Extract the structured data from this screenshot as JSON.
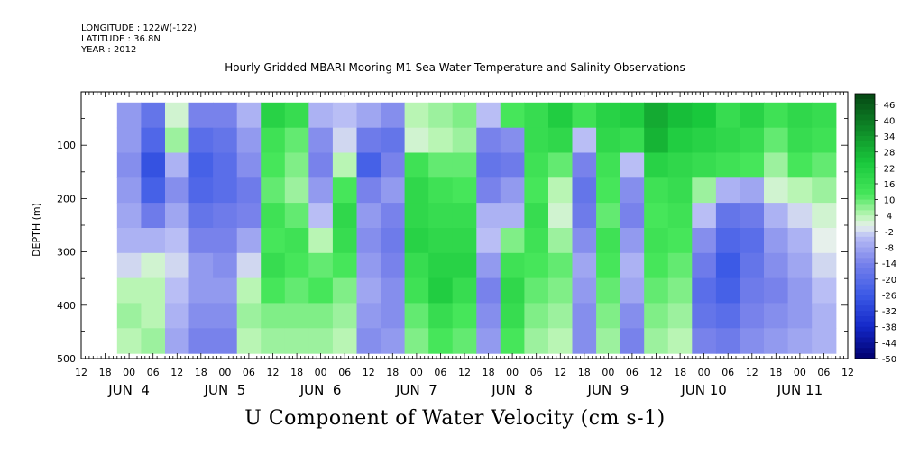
{
  "header": {
    "longitude": "LONGITUDE : 122W(-122)",
    "latitude": "LATITUDE : 36.8N",
    "year": "YEAR : 2012"
  },
  "chart_data": {
    "type": "heatmap",
    "title": "Hourly Gridded MBARI Mooring M1 Sea Water Temperature and Salinity Observations",
    "xlabel": "",
    "ylabel": "DEPTH (m)",
    "footer_label": "U Component of Water Velocity (cm s-1)",
    "x_hour_labels": [
      "12",
      "18",
      "00",
      "06",
      "12",
      "18",
      "00",
      "06",
      "12",
      "18",
      "00",
      "06",
      "12",
      "18",
      "00",
      "06",
      "12",
      "18",
      "00",
      "06",
      "12",
      "18",
      "00",
      "06",
      "12",
      "18",
      "00",
      "06",
      "12",
      "18",
      "00",
      "06",
      "12"
    ],
    "x_day_labels": [
      "JUN  4",
      "JUN  5",
      "JUN  6",
      "JUN  7",
      "JUN  8",
      "JUN  9",
      "JUN 10",
      "JUN 11"
    ],
    "xlim_hours": [
      0,
      192
    ],
    "y_ticks": [
      "100",
      "200",
      "300",
      "400",
      "500"
    ],
    "ylim": [
      500,
      0
    ],
    "data_depth_range": [
      20,
      490
    ],
    "data_start_hour": 9,
    "colorbar": {
      "labels": [
        "46",
        "40",
        "34",
        "28",
        "22",
        "16",
        "10",
        "4",
        "-2",
        "-8",
        "-14",
        "-20",
        "-26",
        "-32",
        "-38",
        "-44",
        "-50"
      ],
      "range": [
        -50,
        50
      ]
    },
    "columns_u": [
      {
        "hour": 9,
        "u": [
          -10,
          -10,
          -12,
          -10,
          -8,
          -6,
          -2,
          4,
          6,
          4
        ]
      },
      {
        "hour": 15,
        "u": [
          -18,
          -22,
          -28,
          -24,
          -16,
          -6,
          2,
          4,
          4,
          6
        ]
      },
      {
        "hour": 21,
        "u": [
          2,
          6,
          -6,
          -12,
          -8,
          -4,
          -2,
          -4,
          -6,
          -8
        ]
      },
      {
        "hour": 27,
        "u": [
          -14,
          -20,
          -24,
          -22,
          -18,
          -14,
          -10,
          -10,
          -12,
          -14
        ]
      },
      {
        "hour": 33,
        "u": [
          -14,
          -18,
          -20,
          -20,
          -16,
          -14,
          -12,
          -10,
          -12,
          -14
        ]
      },
      {
        "hour": 39,
        "u": [
          -6,
          -10,
          -12,
          -16,
          -14,
          -8,
          -2,
          4,
          6,
          4
        ]
      },
      {
        "hour": 45,
        "u": [
          20,
          14,
          12,
          10,
          14,
          12,
          16,
          12,
          8,
          6
        ]
      },
      {
        "hour": 51,
        "u": [
          16,
          10,
          8,
          6,
          10,
          14,
          12,
          10,
          8,
          6
        ]
      },
      {
        "hour": 57,
        "u": [
          -6,
          -12,
          -14,
          -10,
          -4,
          4,
          10,
          12,
          8,
          6
        ]
      },
      {
        "hour": 63,
        "u": [
          -4,
          -2,
          4,
          12,
          18,
          16,
          12,
          8,
          6,
          4
        ]
      },
      {
        "hour": 69,
        "u": [
          -8,
          -16,
          -24,
          -14,
          -10,
          -12,
          -10,
          -8,
          -10,
          -12
        ]
      },
      {
        "hour": 75,
        "u": [
          -12,
          -18,
          -14,
          -10,
          -14,
          -16,
          -14,
          -12,
          -12,
          -10
        ]
      },
      {
        "hour": 81,
        "u": [
          4,
          2,
          14,
          18,
          18,
          20,
          16,
          14,
          10,
          8
        ]
      },
      {
        "hour": 87,
        "u": [
          6,
          4,
          10,
          14,
          16,
          18,
          20,
          22,
          16,
          12
        ]
      },
      {
        "hour": 93,
        "u": [
          8,
          6,
          10,
          12,
          16,
          18,
          20,
          16,
          12,
          10
        ]
      },
      {
        "hour": 99,
        "u": [
          -4,
          -14,
          -18,
          -14,
          -6,
          -4,
          -10,
          -14,
          -12,
          -10
        ]
      },
      {
        "hour": 105,
        "u": [
          12,
          -12,
          -16,
          -10,
          -6,
          8,
          14,
          18,
          16,
          12
        ]
      },
      {
        "hour": 111,
        "u": [
          16,
          16,
          14,
          12,
          16,
          14,
          12,
          10,
          8,
          6
        ]
      },
      {
        "hour": 117,
        "u": [
          22,
          18,
          10,
          4,
          2,
          6,
          10,
          8,
          6,
          4
        ]
      },
      {
        "hour": 123,
        "u": [
          14,
          -4,
          -14,
          -18,
          -16,
          -12,
          -8,
          -10,
          -12,
          -12
        ]
      },
      {
        "hour": 129,
        "u": [
          20,
          18,
          14,
          12,
          10,
          14,
          12,
          10,
          8,
          6
        ]
      },
      {
        "hour": 135,
        "u": [
          22,
          16,
          -4,
          -12,
          -14,
          -10,
          -6,
          -8,
          -12,
          -14
        ]
      },
      {
        "hour": 141,
        "u": [
          30,
          28,
          20,
          14,
          12,
          14,
          12,
          10,
          8,
          6
        ]
      },
      {
        "hour": 147,
        "u": [
          26,
          22,
          18,
          16,
          14,
          12,
          10,
          8,
          6,
          4
        ]
      },
      {
        "hour": 153,
        "u": [
          24,
          20,
          16,
          6,
          -4,
          -12,
          -16,
          -20,
          -18,
          -14
        ]
      },
      {
        "hour": 159,
        "u": [
          16,
          18,
          14,
          -6,
          -18,
          -22,
          -26,
          -24,
          -20,
          -16
        ]
      },
      {
        "hour": 165,
        "u": [
          20,
          16,
          12,
          -8,
          -16,
          -20,
          -18,
          -16,
          -14,
          -12
        ]
      },
      {
        "hour": 171,
        "u": [
          14,
          10,
          6,
          2,
          -6,
          -10,
          -12,
          -14,
          -12,
          -10
        ]
      },
      {
        "hour": 177,
        "u": [
          18,
          16,
          12,
          4,
          -2,
          -6,
          -8,
          -10,
          -10,
          -8
        ]
      },
      {
        "hour": 183,
        "u": [
          16,
          14,
          10,
          6,
          2,
          0,
          -2,
          -4,
          -6,
          -6
        ]
      }
    ]
  }
}
